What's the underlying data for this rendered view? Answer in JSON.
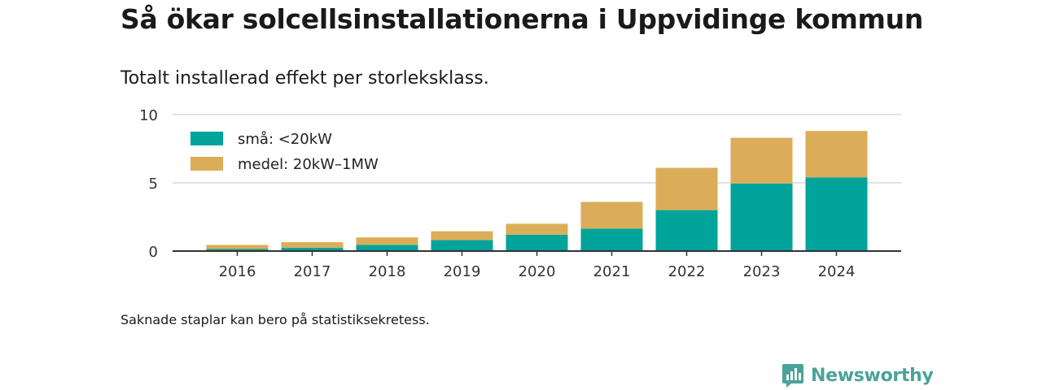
{
  "title": "Så ökar solcellsinstallationerna i Uppvidinge kommun",
  "subtitle": "Totalt installerad effekt per storleksklass.",
  "note": "Saknade staplar kan bero på statistiksekretess.",
  "brand": {
    "name": "Newsworthy",
    "color": "#4aa39a",
    "icon": "newsworthy-logo-icon"
  },
  "chart_data": {
    "type": "bar",
    "stacked": true,
    "categories": [
      "2016",
      "2017",
      "2018",
      "2019",
      "2020",
      "2021",
      "2022",
      "2023",
      "2024"
    ],
    "series": [
      {
        "name": "små: <20kW",
        "color": "#00a49a",
        "values": [
          0.15,
          0.25,
          0.45,
          0.8,
          1.2,
          1.65,
          3.0,
          4.95,
          5.4
        ]
      },
      {
        "name": "medel: 20kW–1MW",
        "color": "#dbad58",
        "values": [
          0.3,
          0.4,
          0.55,
          0.65,
          0.8,
          1.95,
          3.1,
          3.35,
          3.4
        ]
      }
    ],
    "yticks": [
      "0",
      "5",
      "10"
    ],
    "ylim": [
      0,
      10
    ],
    "grid": true,
    "legend": "top-left"
  }
}
